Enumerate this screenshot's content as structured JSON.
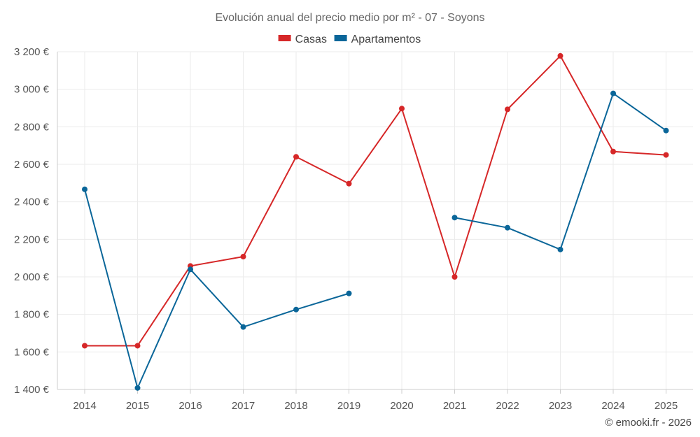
{
  "chart_data": {
    "type": "line",
    "title": "Evolución anual del precio medio por m² - 07 - Soyons",
    "categories": [
      "2014",
      "2015",
      "2016",
      "2017",
      "2018",
      "2019",
      "2020",
      "2021",
      "2022",
      "2023",
      "2024",
      "2025"
    ],
    "series": [
      {
        "name": "Casas",
        "color": "#d62728",
        "values": [
          1633,
          1633,
          2058,
          2108,
          2640,
          2497,
          2897,
          2000,
          2893,
          3178,
          2668,
          2650
        ]
      },
      {
        "name": "Apartamentos",
        "color": "#0a6699",
        "values": [
          2467,
          1408,
          2040,
          1733,
          1826,
          1912,
          null,
          2316,
          2262,
          2146,
          2978,
          2780
        ]
      }
    ],
    "ylim": [
      1400,
      3200
    ],
    "yticks": [
      1400,
      1600,
      1800,
      2000,
      2200,
      2400,
      2600,
      2800,
      3000,
      3200
    ],
    "ytick_labels": [
      "1 400 €",
      "1 600 €",
      "1 800 €",
      "2 000 €",
      "2 200 €",
      "2 400 €",
      "2 600 €",
      "2 800 €",
      "3 000 €",
      "3 200 €"
    ],
    "xlabel": "",
    "ylabel": "",
    "grid": true,
    "legend_position": "top-center"
  },
  "credit": "© emooki.fr - 2026"
}
